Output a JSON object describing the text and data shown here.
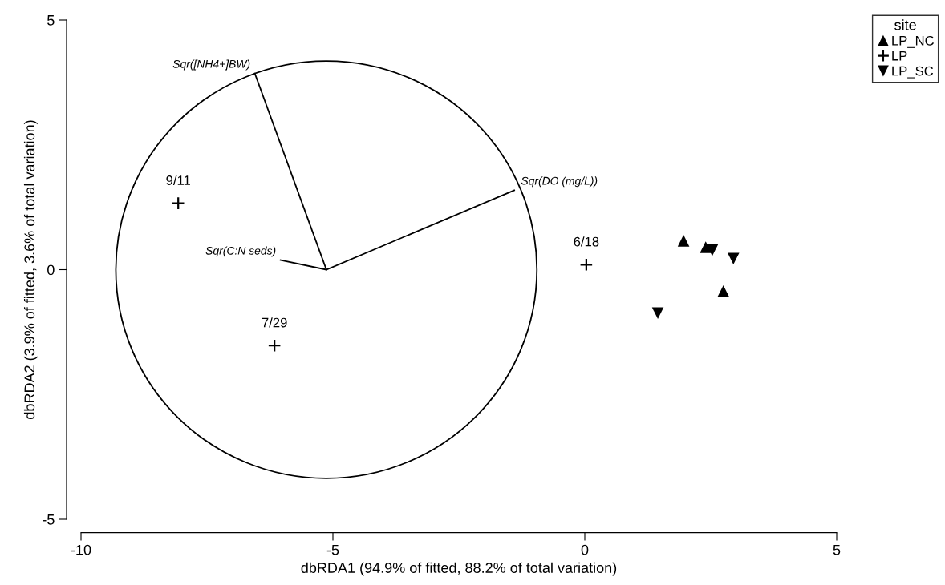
{
  "chart_data": {
    "type": "scatter",
    "xlabel": "dbRDA1 (94.9% of fitted, 88.2% of total variation)",
    "ylabel": "dbRDA2 (3.9% of fitted, 3.6% of total variation)",
    "xlim": [
      -10,
      5
    ],
    "ylim": [
      -5,
      5
    ],
    "xticks": [
      -10,
      -5,
      0,
      5
    ],
    "yticks": [
      -5,
      0,
      5
    ],
    "grid": false,
    "legend": "top right",
    "legend_title": "site",
    "series": [
      {
        "name": "LP_NC",
        "color": "#000000",
        "marker": "triangle",
        "x": [
          1.96,
          2.75,
          2.4
        ],
        "values": [
          0.58,
          -0.43,
          0.45
        ]
      },
      {
        "name": "LP",
        "color": "#000000",
        "marker": "cross",
        "x": [
          -8.07,
          -6.16,
          0.03
        ],
        "values": [
          1.33,
          -1.52,
          0.1
        ]
      },
      {
        "name": "LP_SC",
        "color": "#000000",
        "marker": "triangle_down",
        "x": [
          1.45,
          2.95,
          2.53
        ],
        "values": [
          -0.87,
          0.22,
          0.39
        ]
      },
      {
        "type": "line",
        "color": "#000000",
        "x": [
          -5.13,
          -6.55
        ],
        "values": [
          0,
          3.93
        ]
      },
      {
        "type": "line",
        "color": "#000000",
        "x": [
          -5.13,
          -1.4
        ],
        "values": [
          0,
          1.59
        ]
      },
      {
        "type": "line",
        "color": "#000000",
        "x": [
          -5.13,
          -6.04
        ],
        "values": [
          0,
          0.19
        ]
      }
    ],
    "annotations": [
      {
        "text": "9/11",
        "x": -8.07,
        "y": 1.33
      },
      {
        "text": "7/29",
        "x": -6.16,
        "y": -1.52
      },
      {
        "text": "6/18",
        "x": 0.03,
        "y": 0.1
      },
      {
        "text": "Sqr([NH4+]BW)",
        "x": -6.55,
        "y": 3.93
      },
      {
        "text": "Sqr(DO (mg/L))",
        "x": -1.4,
        "y": 1.59
      },
      {
        "text": "Sqr(C:N seds)",
        "x": -6.04,
        "y": 0.19
      }
    ]
  }
}
